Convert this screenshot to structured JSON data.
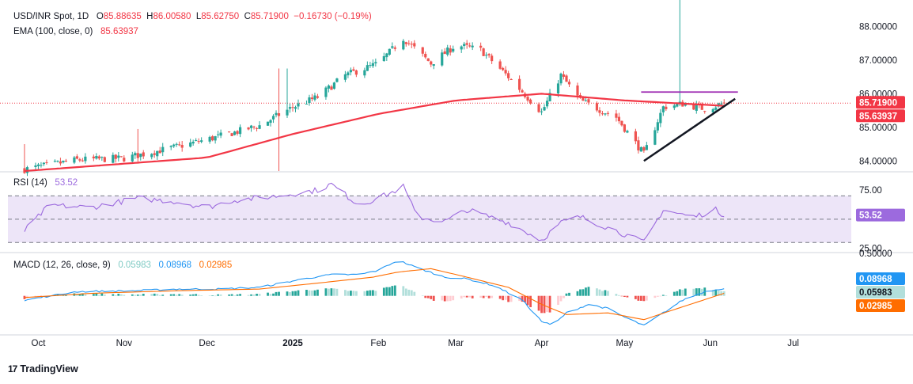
{
  "legend": {
    "symbol": "USD/INR Spot, 1D",
    "open_label": "O",
    "open": "85.88635",
    "high_label": "H",
    "high": "86.00580",
    "low_label": "L",
    "low": "85.62750",
    "close_label": "C",
    "close": "85.71900",
    "change": "−0.16730 (−0.19%)",
    "ema_label": "EMA (100, close, 0)",
    "ema_value": "85.63937",
    "rsi_label": "RSI (14)",
    "rsi_value": "53.52",
    "macd_label": "MACD (12, 26, close, 9)",
    "macd_hist": "0.05983",
    "macd_line": "0.08968",
    "macd_signal": "0.02985"
  },
  "brand": "TradingView",
  "colors": {
    "up": "#26a69a",
    "down": "#ef5350",
    "ema": "#f23645",
    "rsi": "#9c6ade",
    "rsi_band": "#ede5f8",
    "macd": "#2196f3",
    "signal": "#ff6d00",
    "hist_up_strong": "#26a69a",
    "hist_up_weak": "#b2dfdb",
    "hist_down_strong": "#ef5350",
    "hist_down_weak": "#ffcdd2",
    "resistance": "#9c27b0",
    "trend": "#131722",
    "last_price": "#f23645",
    "ema_tag": "#f23645",
    "rsi_tag": "#9c6ade",
    "macd_tag": "#2196f3",
    "hist_tag": "#b2dfdb",
    "signal_tag": "#ff6d00"
  },
  "chart_data": [
    {
      "type": "candlestick",
      "pane": "price",
      "title": "USD/INR Spot, 1D",
      "ylim": [
        83.7,
        88.6
      ],
      "y_ticks": [
        "84.00000",
        "85.00000",
        "86.00000",
        "87.00000",
        "88.00000"
      ],
      "last_close": "85.71900",
      "ema_last": "85.63937",
      "resistance_level": 86.05,
      "trendline": [
        {
          "date": "2025-05-08",
          "value": 84.0
        },
        {
          "date": "2025-06-10",
          "value": 85.85
        }
      ],
      "x_ticks": [
        "Oct",
        "Nov",
        "Dec",
        "2025",
        "Feb",
        "Mar",
        "Apr",
        "May",
        "Jun",
        "Jul"
      ],
      "x_tick_dates": [
        "2024-10-01",
        "2024-11-01",
        "2024-12-01",
        "2025-01-01",
        "2025-02-01",
        "2025-03-01",
        "2025-04-01",
        "2025-05-01",
        "2025-06-01",
        "2025-07-01"
      ],
      "start_date": "2024-09-26",
      "end_date": "2025-06-06",
      "close_anchors": [
        [
          "2024-09-26",
          83.75
        ],
        [
          "2024-10-15",
          84.03
        ],
        [
          "2024-11-01",
          84.08
        ],
        [
          "2024-11-20",
          84.42
        ],
        [
          "2024-12-05",
          84.72
        ],
        [
          "2024-12-20",
          85.05
        ],
        [
          "2025-01-01",
          85.6
        ],
        [
          "2025-01-10",
          85.9
        ],
        [
          "2025-01-20",
          86.55
        ],
        [
          "2025-02-01",
          86.9
        ],
        [
          "2025-02-10",
          87.65
        ],
        [
          "2025-02-20",
          86.9
        ],
        [
          "2025-03-01",
          87.45
        ],
        [
          "2025-03-10",
          87.3
        ],
        [
          "2025-03-20",
          86.5
        ],
        [
          "2025-04-01",
          85.45
        ],
        [
          "2025-04-08",
          86.55
        ],
        [
          "2025-04-15",
          85.8
        ],
        [
          "2025-04-28",
          85.3
        ],
        [
          "2025-05-08",
          84.2
        ],
        [
          "2025-05-15",
          85.6
        ],
        [
          "2025-05-22",
          85.7
        ],
        [
          "2025-05-30",
          85.55
        ],
        [
          "2025-06-06",
          85.72
        ]
      ],
      "ema_anchors": [
        [
          "2024-09-26",
          83.7
        ],
        [
          "2024-12-01",
          84.1
        ],
        [
          "2025-01-01",
          84.8
        ],
        [
          "2025-02-01",
          85.4
        ],
        [
          "2025-03-01",
          85.8
        ],
        [
          "2025-04-01",
          86.0
        ],
        [
          "2025-05-01",
          85.8
        ],
        [
          "2025-06-06",
          85.64
        ]
      ],
      "spikes": [
        {
          "date": "2024-09-26",
          "high": 84.5
        },
        {
          "date": "2024-11-06",
          "high": 84.95
        },
        {
          "date": "2024-12-27",
          "high": 86.75,
          "low": 83.7
        },
        {
          "date": "2024-12-30",
          "high": 86.75
        },
        {
          "date": "2025-05-21",
          "high": 88.95
        }
      ]
    },
    {
      "type": "line",
      "pane": "rsi",
      "title": "RSI (14)",
      "ylim": [
        22,
        90
      ],
      "y_ticks": [
        "75.00",
        "25.00"
      ],
      "band": [
        30,
        70
      ],
      "middle": 50,
      "last": "53.52",
      "anchors": [
        [
          "2024-09-26",
          40
        ],
        [
          "2024-10-05",
          62
        ],
        [
          "2024-10-20",
          60
        ],
        [
          "2024-11-06",
          68
        ],
        [
          "2024-11-20",
          65
        ],
        [
          "2024-12-01",
          60
        ],
        [
          "2024-12-10",
          66
        ],
        [
          "2024-12-27",
          70
        ],
        [
          "2025-01-10",
          75
        ],
        [
          "2025-01-15",
          80
        ],
        [
          "2025-01-25",
          62
        ],
        [
          "2025-02-05",
          72
        ],
        [
          "2025-02-10",
          78
        ],
        [
          "2025-02-15",
          52
        ],
        [
          "2025-02-25",
          48
        ],
        [
          "2025-03-05",
          58
        ],
        [
          "2025-03-20",
          47
        ],
        [
          "2025-04-01",
          32
        ],
        [
          "2025-04-08",
          47
        ],
        [
          "2025-04-15",
          52
        ],
        [
          "2025-04-28",
          40
        ],
        [
          "2025-05-08",
          30
        ],
        [
          "2025-05-15",
          58
        ],
        [
          "2025-05-20",
          55
        ],
        [
          "2025-05-26",
          52
        ],
        [
          "2025-06-03",
          58
        ],
        [
          "2025-06-06",
          53.52
        ]
      ]
    },
    {
      "type": "macd",
      "pane": "macd",
      "title": "MACD (12, 26, close, 9)",
      "ylim": [
        -0.45,
        0.5
      ],
      "y_ticks": [
        "0.50000"
      ],
      "macd_last": "0.08968",
      "hist_last": "0.05983",
      "signal_last": "0.02985",
      "macd_anchors": [
        [
          "2024-09-26",
          -0.05
        ],
        [
          "2024-10-15",
          0.05
        ],
        [
          "2024-11-05",
          0.06
        ],
        [
          "2024-11-20",
          0.08
        ],
        [
          "2024-12-05",
          0.08
        ],
        [
          "2024-12-20",
          0.1
        ],
        [
          "2025-01-05",
          0.2
        ],
        [
          "2025-01-15",
          0.25
        ],
        [
          "2025-01-25",
          0.25
        ],
        [
          "2025-02-01",
          0.3
        ],
        [
          "2025-02-08",
          0.42
        ],
        [
          "2025-02-15",
          0.33
        ],
        [
          "2025-02-25",
          0.22
        ],
        [
          "2025-03-05",
          0.2
        ],
        [
          "2025-03-15",
          0.12
        ],
        [
          "2025-03-25",
          -0.05
        ],
        [
          "2025-04-01",
          -0.3
        ],
        [
          "2025-04-05",
          -0.35
        ],
        [
          "2025-04-10",
          -0.2
        ],
        [
          "2025-04-18",
          -0.1
        ],
        [
          "2025-04-25",
          -0.15
        ],
        [
          "2025-05-01",
          -0.25
        ],
        [
          "2025-05-08",
          -0.35
        ],
        [
          "2025-05-15",
          -0.2
        ],
        [
          "2025-05-22",
          -0.05
        ],
        [
          "2025-05-30",
          0.05
        ],
        [
          "2025-06-06",
          0.09
        ]
      ],
      "signal_anchors": [
        [
          "2024-09-26",
          -0.02
        ],
        [
          "2024-10-20",
          0.03
        ],
        [
          "2024-11-20",
          0.06
        ],
        [
          "2024-12-20",
          0.08
        ],
        [
          "2025-01-10",
          0.15
        ],
        [
          "2025-01-30",
          0.22
        ],
        [
          "2025-02-08",
          0.28
        ],
        [
          "2025-02-20",
          0.32
        ],
        [
          "2025-03-05",
          0.22
        ],
        [
          "2025-03-20",
          0.1
        ],
        [
          "2025-04-01",
          -0.1
        ],
        [
          "2025-04-10",
          -0.22
        ],
        [
          "2025-04-25",
          -0.2
        ],
        [
          "2025-05-08",
          -0.28
        ],
        [
          "2025-05-20",
          -0.15
        ],
        [
          "2025-06-06",
          0.03
        ]
      ]
    }
  ]
}
